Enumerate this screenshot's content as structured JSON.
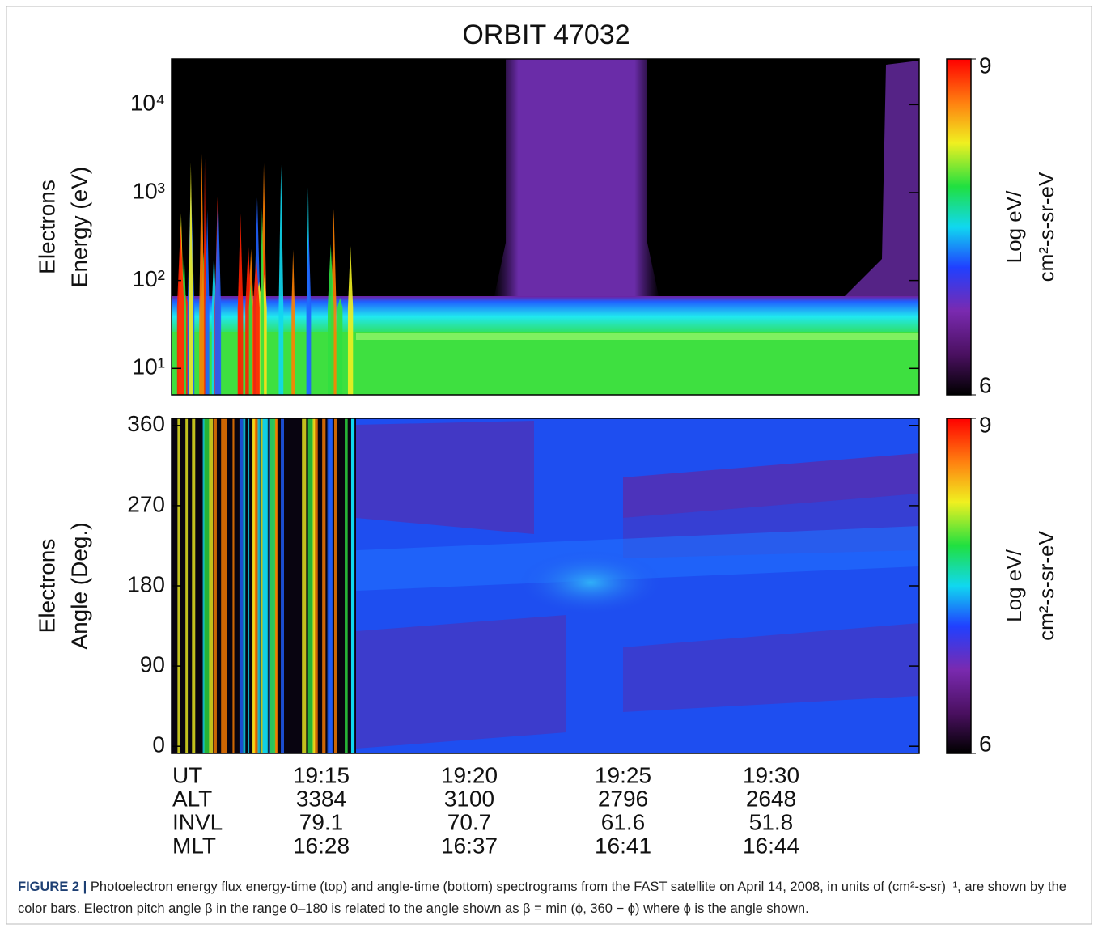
{
  "chart_data": [
    {
      "type": "heatmap",
      "title": "ORBIT 47032",
      "ylabel": [
        "Electrons",
        "Energy (eV)"
      ],
      "log_y": true,
      "ylim": [
        5,
        33000
      ],
      "yticks": [
        {
          "value": 10,
          "label": "10¹"
        },
        {
          "value": 100,
          "label": "10²"
        },
        {
          "value": 1000,
          "label": "10³"
        },
        {
          "value": 10000,
          "label": "10⁴"
        }
      ],
      "colorbar": {
        "lim": [
          6,
          9
        ],
        "ticks": [
          6,
          9
        ],
        "label": [
          "Log eV/",
          "cm²-s-sr-eV"
        ]
      }
    },
    {
      "type": "heatmap",
      "ylabel": [
        "Electrons",
        "Angle (Deg.)"
      ],
      "log_y": false,
      "ylim": [
        -8,
        368
      ],
      "yticks": [
        0,
        90,
        180,
        270,
        360
      ],
      "colorbar": {
        "lim": [
          6,
          9
        ],
        "ticks": [
          6,
          9
        ],
        "label": [
          "Log eV/",
          "cm²-s-sr-eV"
        ]
      }
    }
  ],
  "time_axis": {
    "rows": [
      {
        "label": "UT",
        "values": [
          "19:15",
          "19:20",
          "19:25",
          "19:30"
        ]
      },
      {
        "label": "ALT",
        "values": [
          3384,
          3100,
          2796,
          2648
        ]
      },
      {
        "label": "INVL",
        "values": [
          79.1,
          70.7,
          61.6,
          51.8
        ]
      },
      {
        "label": "MLT",
        "values": [
          "16:28",
          "16:37",
          "16:41",
          "16:44"
        ]
      }
    ]
  },
  "figure": {
    "caption_label": "FIGURE 2 |",
    "caption": "Photoelectron energy flux energy-time (top) and angle-time (bottom) spectrograms from the FAST satellite on April 14, 2008, in units of (cm²-s-sr)⁻¹, are shown by the color bars. Electron pitch angle β in the range 0–180 is related to the angle shown as β = min (ϕ, 360 − ϕ) where ϕ is the angle shown."
  }
}
